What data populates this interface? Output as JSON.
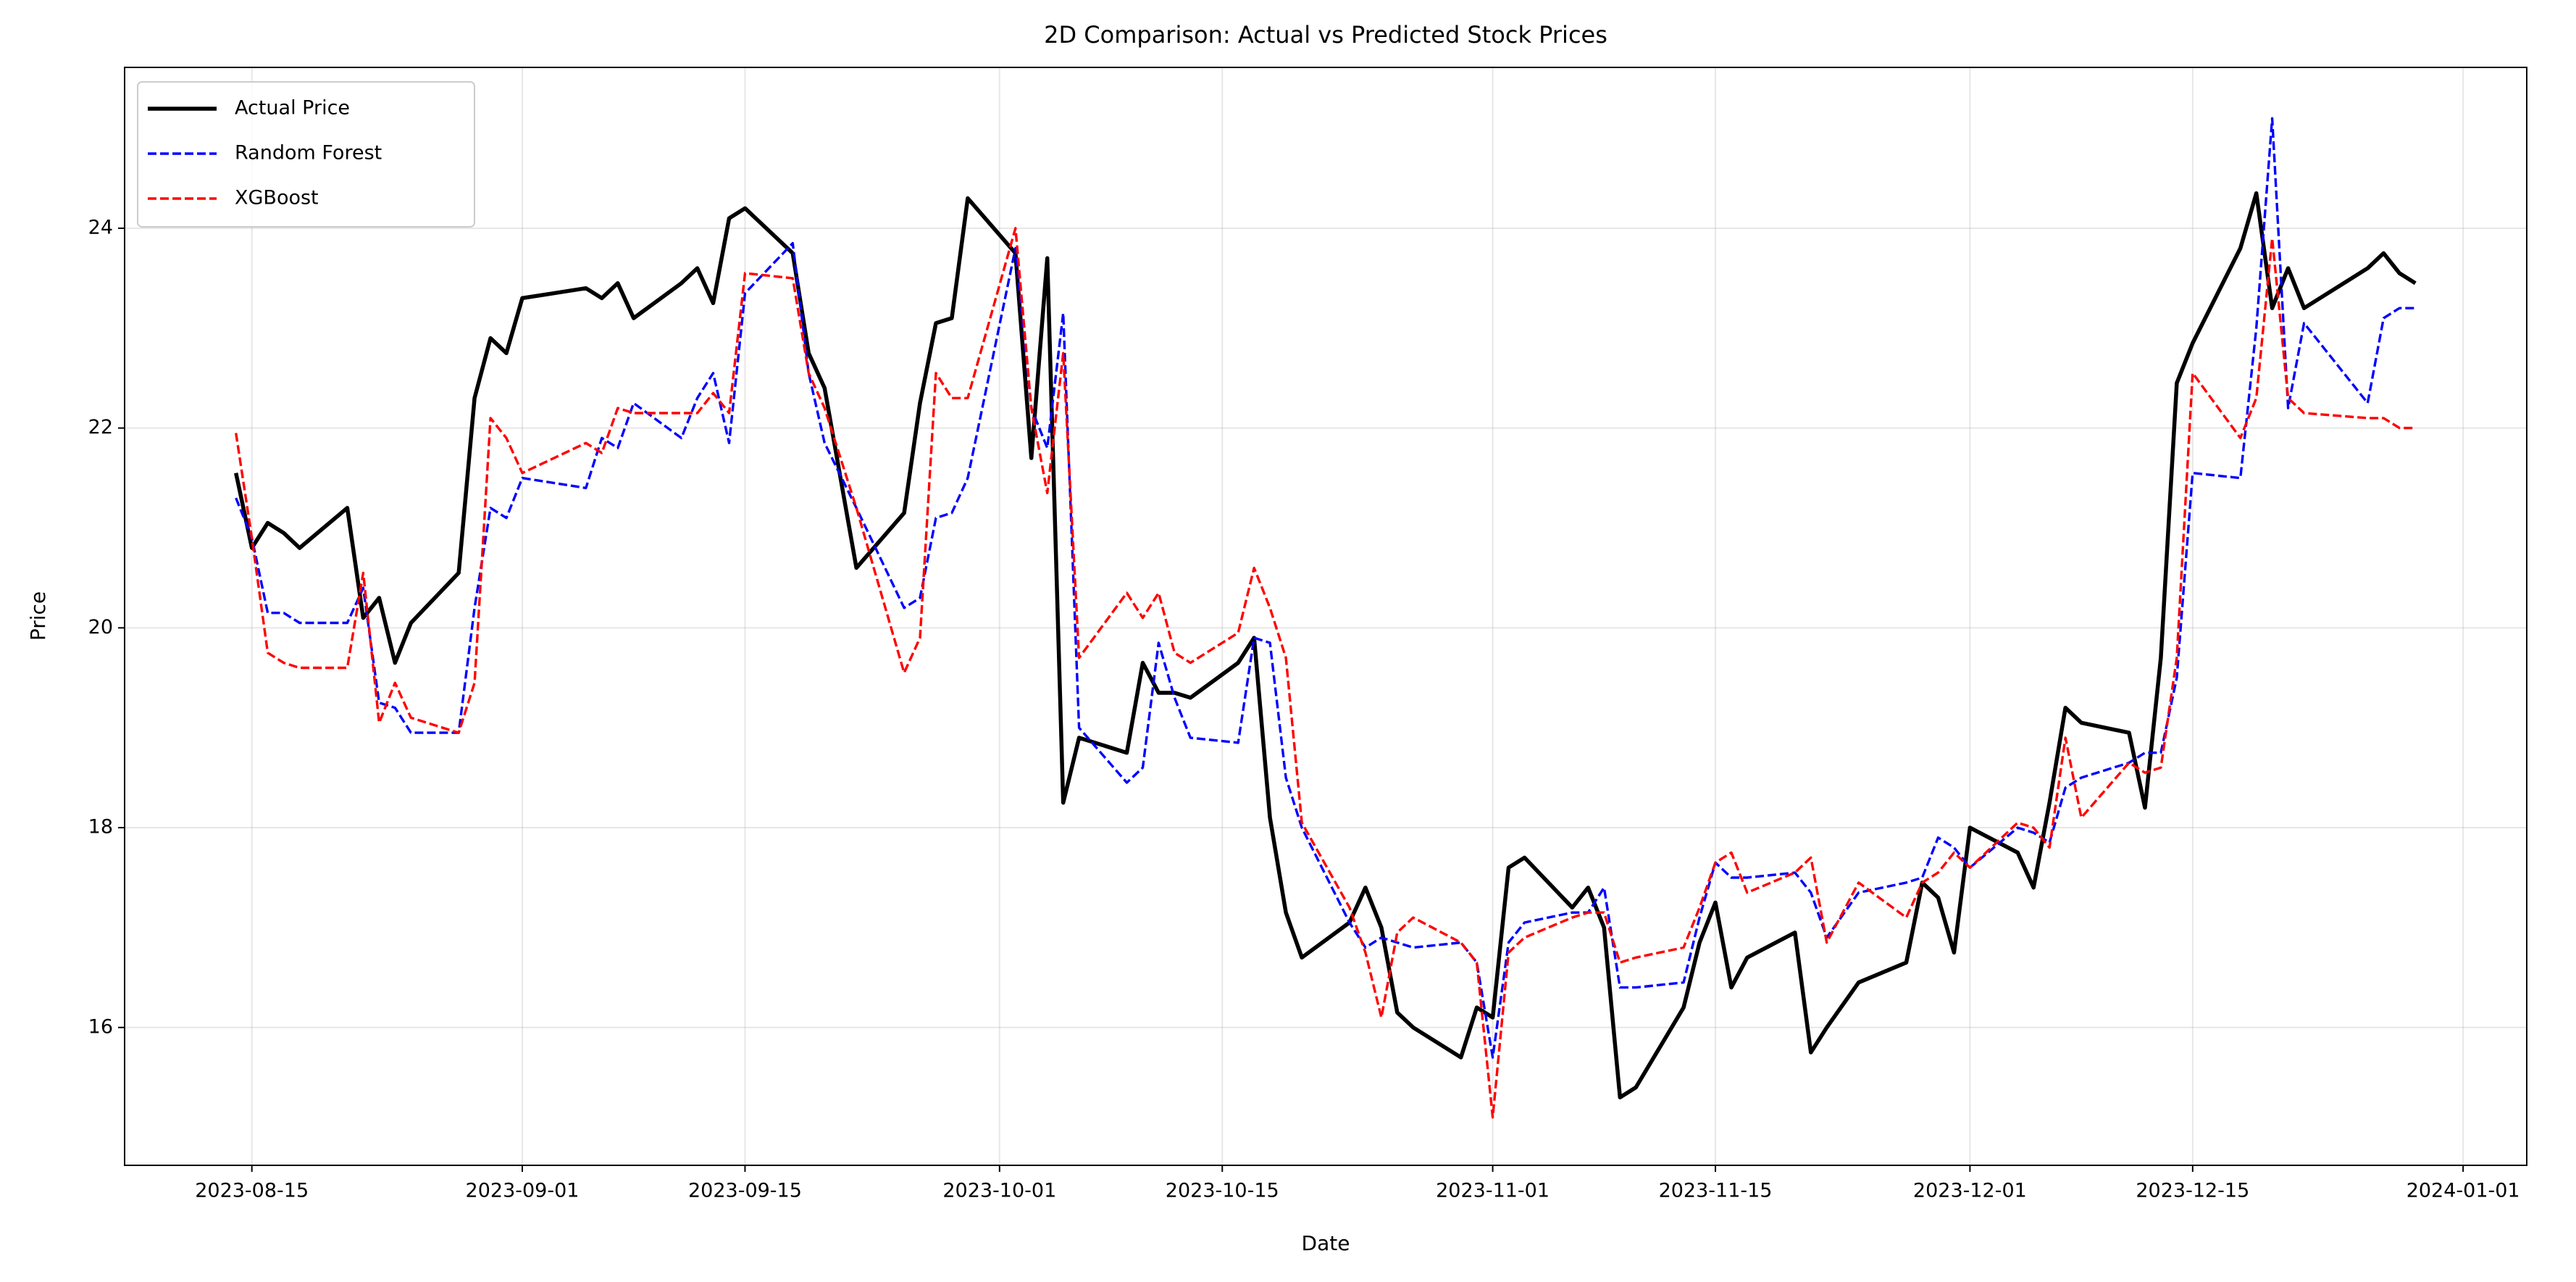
{
  "chart_data": {
    "type": "line",
    "title": "2D Comparison: Actual vs Predicted Stock Prices",
    "x_label": "Date",
    "y_label": "Price",
    "x": [
      "2023-08-14",
      "2023-08-15",
      "2023-08-16",
      "2023-08-17",
      "2023-08-18",
      "2023-08-21",
      "2023-08-22",
      "2023-08-23",
      "2023-08-24",
      "2023-08-25",
      "2023-08-28",
      "2023-08-29",
      "2023-08-30",
      "2023-08-31",
      "2023-09-01",
      "2023-09-05",
      "2023-09-06",
      "2023-09-07",
      "2023-09-08",
      "2023-09-11",
      "2023-09-12",
      "2023-09-13",
      "2023-09-14",
      "2023-09-15",
      "2023-09-18",
      "2023-09-19",
      "2023-09-20",
      "2023-09-22",
      "2023-09-25",
      "2023-09-26",
      "2023-09-27",
      "2023-09-28",
      "2023-09-29",
      "2023-10-02",
      "2023-10-03",
      "2023-10-04",
      "2023-10-05",
      "2023-10-06",
      "2023-10-09",
      "2023-10-10",
      "2023-10-11",
      "2023-10-12",
      "2023-10-13",
      "2023-10-16",
      "2023-10-17",
      "2023-10-18",
      "2023-10-19",
      "2023-10-20",
      "2023-10-23",
      "2023-10-24",
      "2023-10-25",
      "2023-10-26",
      "2023-10-27",
      "2023-10-30",
      "2023-10-31",
      "2023-11-01",
      "2023-11-02",
      "2023-11-03",
      "2023-11-06",
      "2023-11-07",
      "2023-11-08",
      "2023-11-09",
      "2023-11-10",
      "2023-11-13",
      "2023-11-14",
      "2023-11-15",
      "2023-11-16",
      "2023-11-17",
      "2023-11-20",
      "2023-11-21",
      "2023-11-22",
      "2023-11-24",
      "2023-11-27",
      "2023-11-28",
      "2023-11-29",
      "2023-11-30",
      "2023-12-01",
      "2023-12-04",
      "2023-12-05",
      "2023-12-06",
      "2023-12-07",
      "2023-12-08",
      "2023-12-11",
      "2023-12-12",
      "2023-12-13",
      "2023-12-14",
      "2023-12-15",
      "2023-12-18",
      "2023-12-19",
      "2023-12-20",
      "2023-12-21",
      "2023-12-22",
      "2023-12-26",
      "2023-12-27",
      "2023-12-28",
      "2023-12-29"
    ],
    "series": [
      {
        "name": "Actual Price",
        "color": "#000000",
        "style": "solid",
        "values": [
          21.55,
          20.8,
          21.05,
          20.95,
          20.8,
          21.2,
          20.1,
          20.3,
          19.65,
          20.05,
          20.55,
          22.3,
          22.9,
          22.75,
          23.3,
          23.4,
          23.3,
          23.45,
          23.1,
          23.45,
          23.6,
          23.25,
          24.1,
          24.2,
          23.75,
          22.75,
          22.4,
          20.6,
          21.15,
          22.25,
          23.05,
          23.1,
          24.3,
          23.75,
          21.7,
          23.7,
          18.25,
          18.9,
          18.75,
          19.65,
          19.35,
          19.35,
          19.3,
          19.65,
          19.9,
          18.1,
          17.15,
          16.7,
          17.05,
          17.4,
          17.0,
          16.15,
          16.0,
          15.7,
          16.2,
          16.1,
          17.6,
          17.7,
          17.2,
          17.4,
          17.0,
          15.3,
          15.4,
          16.2,
          16.85,
          17.25,
          16.4,
          16.7,
          16.95,
          15.75,
          16.0,
          16.45,
          16.65,
          17.45,
          17.3,
          16.75,
          18.0,
          17.75,
          17.4,
          18.25,
          19.2,
          19.05,
          18.95,
          18.2,
          19.7,
          22.45,
          22.85,
          23.8,
          24.35,
          23.2,
          23.6,
          23.2,
          23.6,
          23.75,
          23.55,
          23.45
        ]
      },
      {
        "name": "Random Forest",
        "color": "#0000ff",
        "style": "dashed",
        "values": [
          21.3,
          20.9,
          20.15,
          20.15,
          20.05,
          20.05,
          20.4,
          19.25,
          19.2,
          18.95,
          18.95,
          20.2,
          21.2,
          21.1,
          21.5,
          21.4,
          21.9,
          21.8,
          22.25,
          21.9,
          22.3,
          22.55,
          21.85,
          23.35,
          23.85,
          22.55,
          21.85,
          21.2,
          20.2,
          20.3,
          21.1,
          21.15,
          21.5,
          23.8,
          22.2,
          21.8,
          23.15,
          19.0,
          18.45,
          18.6,
          19.85,
          19.3,
          18.9,
          18.85,
          19.9,
          19.85,
          18.5,
          18.0,
          17.05,
          16.8,
          16.9,
          16.85,
          16.8,
          16.85,
          16.65,
          15.7,
          16.85,
          17.05,
          17.15,
          17.15,
          17.4,
          16.4,
          16.4,
          16.45,
          17.1,
          17.65,
          17.5,
          17.5,
          17.55,
          17.35,
          16.9,
          17.35,
          17.45,
          17.5,
          17.9,
          17.8,
          17.6,
          18.0,
          17.95,
          17.85,
          18.4,
          18.5,
          18.65,
          18.75,
          18.75,
          19.5,
          21.55,
          21.5,
          23.0,
          25.1,
          22.2,
          23.05,
          22.25,
          23.1,
          23.2,
          23.2
        ]
      },
      {
        "name": "XGBoost",
        "color": "#ff0000",
        "style": "dashed",
        "values": [
          21.95,
          20.9,
          19.75,
          19.65,
          19.6,
          19.6,
          20.55,
          19.05,
          19.45,
          19.1,
          18.95,
          19.45,
          22.1,
          21.9,
          21.55,
          21.85,
          21.75,
          22.2,
          22.15,
          22.15,
          22.15,
          22.35,
          22.15,
          23.55,
          23.5,
          22.55,
          22.2,
          21.2,
          19.55,
          19.9,
          22.55,
          22.3,
          22.3,
          24.0,
          22.2,
          21.35,
          22.75,
          19.7,
          20.35,
          20.1,
          20.35,
          19.75,
          19.65,
          19.95,
          20.6,
          20.2,
          19.7,
          18.05,
          17.2,
          16.75,
          16.1,
          16.95,
          17.1,
          16.85,
          16.65,
          15.1,
          16.75,
          16.9,
          17.1,
          17.15,
          17.15,
          16.65,
          16.7,
          16.8,
          17.2,
          17.65,
          17.75,
          17.35,
          17.55,
          17.7,
          16.85,
          17.45,
          17.1,
          17.45,
          17.55,
          17.75,
          17.6,
          18.05,
          18.0,
          17.8,
          18.9,
          18.1,
          18.65,
          18.55,
          18.6,
          19.7,
          22.55,
          21.9,
          22.3,
          23.9,
          22.3,
          22.15,
          22.1,
          22.1,
          22.0,
          22.0
        ]
      }
    ],
    "xlim": [
      "2023-08-07",
      "2024-01-05"
    ],
    "xticks": [
      "2023-08-15",
      "2023-09-01",
      "2023-09-15",
      "2023-10-01",
      "2023-10-15",
      "2023-11-01",
      "2023-11-15",
      "2023-12-01",
      "2023-12-15",
      "2024-01-01"
    ],
    "ylim": [
      14.62,
      25.61
    ],
    "yticks": [
      16,
      18,
      20,
      22,
      24
    ],
    "grid": true,
    "legend": "upper left"
  }
}
